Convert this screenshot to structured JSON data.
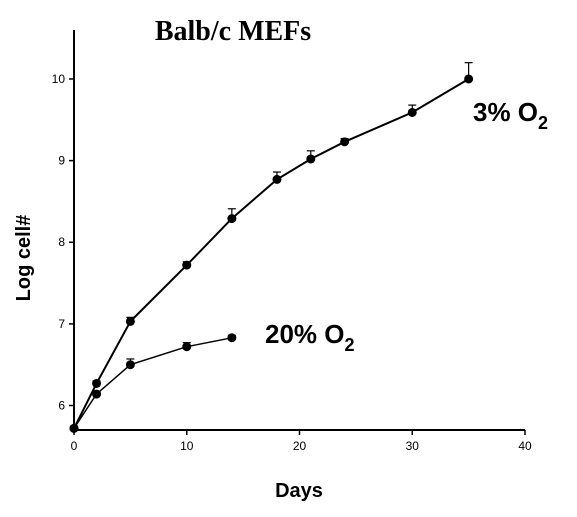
{
  "chart_data": {
    "type": "line",
    "title": "Balb/c MEFs",
    "xlabel": "Days",
    "ylabel": "Log cell#",
    "xlim": [
      0,
      40
    ],
    "ylim": [
      5.7,
      10.6
    ],
    "xticks": [
      0,
      10,
      20,
      30,
      40
    ],
    "yticks": [
      6,
      7,
      8,
      9,
      10
    ],
    "grid": false,
    "series": [
      {
        "name": "3% O2",
        "label_main": "3% O",
        "label_sub": "2",
        "x": [
          0,
          2,
          5,
          10,
          14,
          18,
          21,
          24,
          30,
          35
        ],
        "y": [
          5.72,
          6.27,
          7.03,
          7.72,
          8.29,
          8.77,
          9.02,
          9.23,
          9.59,
          10.0
        ],
        "err": [
          0,
          0.03,
          0.05,
          0.04,
          0.12,
          0.09,
          0.1,
          0.04,
          0.09,
          0.2
        ]
      },
      {
        "name": "20% O2",
        "label_main": "20% O",
        "label_sub": "2",
        "x": [
          0,
          2,
          5,
          10,
          14
        ],
        "y": [
          5.72,
          6.14,
          6.5,
          6.72,
          6.83
        ],
        "err": [
          0,
          0.03,
          0.07,
          0.05,
          0.03
        ]
      }
    ],
    "colors": {
      "line": "#000000",
      "marker": "#000000",
      "background": "#ffffff"
    }
  }
}
